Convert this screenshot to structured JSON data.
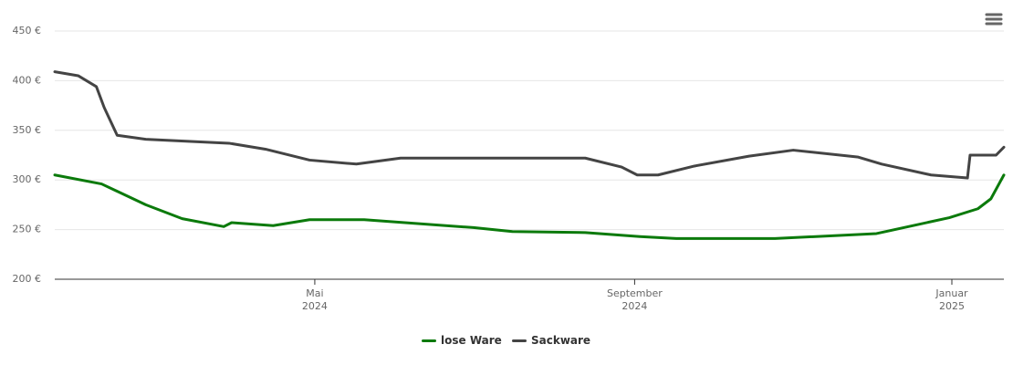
{
  "chart_data": {
    "type": "line",
    "xlim": [
      0,
      365
    ],
    "xticks": [
      {
        "value": 100,
        "label": "Mai\n2024"
      },
      {
        "value": 223,
        "label": "September\n2024"
      },
      {
        "value": 345,
        "label": "Januar\n2025"
      }
    ],
    "ylim": [
      200,
      450
    ],
    "yticks": [
      {
        "value": 200,
        "label": "200 €"
      },
      {
        "value": 250,
        "label": "250 €"
      },
      {
        "value": 300,
        "label": "300 €"
      },
      {
        "value": 350,
        "label": "350 €"
      },
      {
        "value": 400,
        "label": "400 €"
      },
      {
        "value": 450,
        "label": "450 €"
      }
    ],
    "grid": true,
    "legend": "bottom",
    "series": [
      {
        "name": "lose Ware",
        "color": "#0b7a0b",
        "x": [
          0,
          18,
          35,
          49,
          65,
          68,
          84,
          98,
          119,
          161,
          176,
          204,
          225,
          239,
          277,
          316,
          344,
          355,
          360,
          365
        ],
        "values": [
          305,
          296,
          275,
          261,
          253,
          257,
          254,
          260,
          260,
          252,
          248,
          247,
          243,
          241,
          241,
          246,
          262,
          271,
          281,
          305
        ]
      },
      {
        "name": "Sackware",
        "color": "#444444",
        "x": [
          0,
          9,
          16,
          19,
          24,
          35,
          67,
          81,
          98,
          116,
          133,
          204,
          218,
          224,
          232,
          246,
          267,
          284,
          309,
          318,
          337,
          351,
          352,
          362,
          365
        ],
        "values": [
          409,
          405,
          394,
          373,
          345,
          341,
          337,
          331,
          320,
          316,
          322,
          322,
          313,
          305,
          305,
          314,
          324,
          330,
          323,
          316,
          305,
          302,
          325,
          325,
          333
        ]
      }
    ]
  }
}
